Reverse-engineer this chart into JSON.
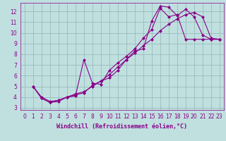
{
  "xlabel": "Windchill (Refroidissement éolien,°C)",
  "background_color": "#c0e0e0",
  "line_color": "#880088",
  "grid_color": "#99bbbb",
  "xlim": [
    -0.5,
    23.5
  ],
  "ylim": [
    2.8,
    12.8
  ],
  "xticks": [
    0,
    1,
    2,
    3,
    4,
    5,
    6,
    7,
    8,
    9,
    10,
    11,
    12,
    13,
    14,
    15,
    16,
    17,
    18,
    19,
    20,
    21,
    22,
    23
  ],
  "yticks": [
    3,
    4,
    5,
    6,
    7,
    8,
    9,
    10,
    11,
    12
  ],
  "curve1_x": [
    1,
    2,
    3,
    4,
    5,
    6,
    7,
    8,
    9,
    10,
    11,
    12,
    13,
    14,
    15,
    16,
    17,
    18,
    19,
    20,
    21,
    22,
    23
  ],
  "curve1_y": [
    5.0,
    3.9,
    3.5,
    3.6,
    4.0,
    4.1,
    7.5,
    5.3,
    5.2,
    6.5,
    7.2,
    7.8,
    8.5,
    9.5,
    10.3,
    12.3,
    11.5,
    11.7,
    9.4,
    9.4,
    9.4,
    9.4,
    9.4
  ],
  "curve2_x": [
    1,
    2,
    3,
    4,
    5,
    6,
    7,
    8,
    9,
    10,
    11,
    12,
    13,
    14,
    15,
    16,
    17,
    18,
    19,
    20,
    21,
    22,
    23
  ],
  "curve2_y": [
    5.0,
    3.9,
    3.5,
    3.7,
    4.0,
    4.2,
    4.4,
    5.1,
    5.5,
    5.8,
    6.5,
    7.5,
    8.3,
    8.5,
    11.1,
    12.5,
    12.4,
    11.6,
    12.2,
    11.5,
    9.8,
    9.4,
    9.4
  ],
  "curve3_x": [
    1,
    2,
    3,
    4,
    5,
    6,
    7,
    8,
    9,
    10,
    11,
    12,
    13,
    14,
    15,
    16,
    17,
    18,
    19,
    20,
    21,
    22,
    23
  ],
  "curve3_y": [
    5.0,
    4.0,
    3.6,
    3.7,
    4.0,
    4.3,
    4.5,
    5.0,
    5.5,
    6.1,
    6.8,
    7.5,
    8.1,
    8.8,
    9.4,
    10.2,
    10.8,
    11.3,
    11.7,
    11.9,
    11.5,
    9.5,
    9.4
  ],
  "tick_fontsize": 5.5,
  "label_fontsize": 6.0,
  "marker_size": 2.5,
  "line_width": 0.8
}
